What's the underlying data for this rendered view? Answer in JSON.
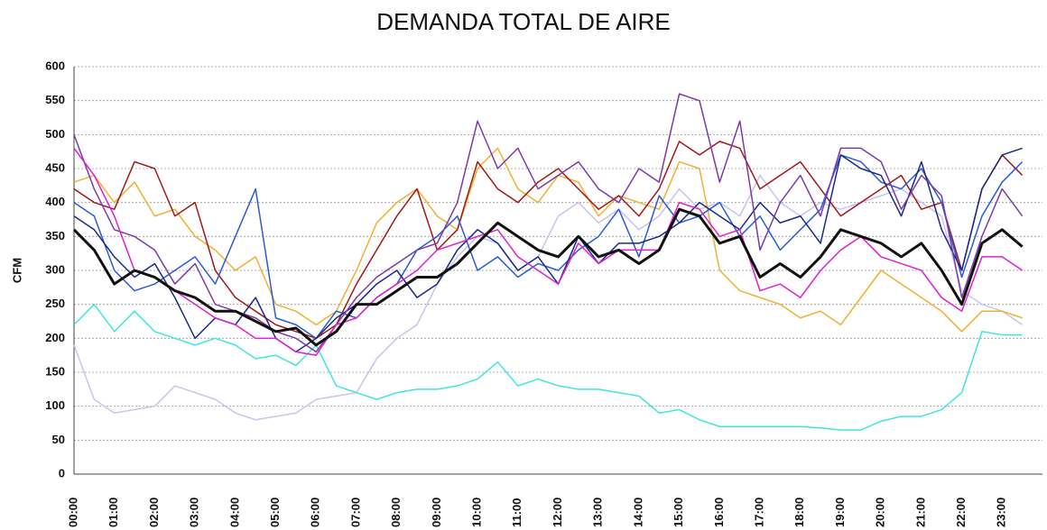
{
  "chart_data": {
    "type": "line",
    "title": "DEMANDA TOTAL DE AIRE",
    "y_label": "CFM",
    "categories": [
      "00:00",
      null,
      "01:00",
      null,
      "02:00",
      null,
      "03:00",
      null,
      "04:00",
      null,
      "05:00",
      null,
      "06:00",
      null,
      "07:00",
      null,
      "08:00",
      null,
      "09:00",
      null,
      "10:00",
      null,
      "11:00",
      null,
      "12:00",
      null,
      "13:00",
      null,
      "14:00",
      null,
      "15:00",
      null,
      "16:00",
      null,
      "17:00",
      null,
      "18:00",
      null,
      "19:00",
      null,
      "20:00",
      null,
      "21:00",
      null,
      "22:00",
      null,
      "23:00",
      null
    ],
    "ylim": [
      0,
      600
    ],
    "yticks": [
      0,
      50,
      100,
      150,
      200,
      250,
      300,
      350,
      400,
      450,
      500,
      550,
      600
    ],
    "grid": true,
    "series": [
      {
        "color": "#c8c4ef",
        "values": [
          190,
          110,
          90,
          95,
          100,
          130,
          120,
          110,
          90,
          80,
          85,
          90,
          110,
          115,
          120,
          170,
          200,
          220,
          280,
          320,
          350,
          340,
          300,
          320,
          380,
          400,
          370,
          390,
          360,
          380,
          420,
          390,
          400,
          380,
          440,
          400,
          380,
          400,
          390,
          400,
          410,
          420,
          400,
          380,
          270,
          250,
          240,
          220
        ]
      },
      {
        "color": "#3ee6e0",
        "values": [
          220,
          250,
          210,
          240,
          210,
          200,
          190,
          200,
          190,
          170,
          175,
          160,
          190,
          130,
          120,
          110,
          120,
          125,
          125,
          130,
          140,
          165,
          130,
          140,
          130,
          125,
          125,
          120,
          115,
          90,
          95,
          80,
          70,
          70,
          70,
          70,
          70,
          68,
          65,
          65,
          78,
          85,
          85,
          95,
          120,
          210,
          205,
          205
        ]
      },
      {
        "color": "#f0b030",
        "values": [
          430,
          440,
          400,
          430,
          380,
          390,
          350,
          330,
          300,
          320,
          250,
          240,
          220,
          240,
          300,
          370,
          400,
          420,
          380,
          360,
          450,
          480,
          420,
          400,
          440,
          430,
          380,
          410,
          400,
          390,
          460,
          450,
          300,
          270,
          260,
          250,
          230,
          240,
          220,
          260,
          300,
          280,
          260,
          240,
          210,
          240,
          240,
          230
        ]
      },
      {
        "color": "#a01818",
        "values": [
          420,
          400,
          390,
          460,
          450,
          380,
          400,
          300,
          260,
          240,
          220,
          210,
          200,
          220,
          280,
          330,
          380,
          420,
          330,
          360,
          460,
          420,
          400,
          430,
          450,
          420,
          390,
          410,
          380,
          420,
          490,
          470,
          490,
          480,
          420,
          440,
          460,
          420,
          380,
          400,
          420,
          440,
          390,
          400,
          300,
          420,
          470,
          440
        ]
      },
      {
        "color": "#2a5ad8",
        "values": [
          400,
          380,
          300,
          270,
          280,
          300,
          320,
          280,
          350,
          420,
          230,
          220,
          200,
          240,
          230,
          260,
          280,
          330,
          350,
          380,
          300,
          320,
          290,
          310,
          300,
          330,
          350,
          390,
          320,
          410,
          370,
          380,
          400,
          350,
          380,
          330,
          360,
          390,
          470,
          460,
          430,
          420,
          450,
          400,
          290,
          380,
          430,
          460
        ]
      },
      {
        "color": "#1a2a8a",
        "values": [
          380,
          360,
          320,
          290,
          310,
          260,
          200,
          230,
          220,
          260,
          200,
          180,
          200,
          230,
          250,
          280,
          300,
          260,
          280,
          330,
          360,
          340,
          300,
          320,
          280,
          350,
          310,
          340,
          340,
          350,
          370,
          400,
          380,
          360,
          400,
          370,
          380,
          340,
          470,
          450,
          440,
          380,
          460,
          360,
          300,
          420,
          470,
          480
        ]
      },
      {
        "color": "#7a3aa8",
        "values": [
          500,
          420,
          360,
          350,
          330,
          280,
          310,
          250,
          240,
          230,
          210,
          200,
          180,
          220,
          260,
          290,
          310,
          330,
          340,
          400,
          520,
          450,
          480,
          420,
          440,
          460,
          420,
          400,
          450,
          430,
          560,
          550,
          430,
          520,
          330,
          400,
          440,
          380,
          480,
          480,
          460,
          390,
          440,
          410,
          260,
          350,
          420,
          380
        ]
      },
      {
        "color": "#e020d0",
        "values": [
          480,
          440,
          380,
          300,
          290,
          270,
          250,
          230,
          220,
          200,
          200,
          180,
          175,
          220,
          230,
          260,
          280,
          300,
          330,
          340,
          350,
          360,
          320,
          300,
          280,
          340,
          310,
          330,
          330,
          330,
          400,
          390,
          350,
          360,
          270,
          280,
          260,
          300,
          330,
          350,
          320,
          310,
          300,
          260,
          240,
          320,
          320,
          300
        ]
      },
      {
        "color": "#111111",
        "values": [
          360,
          330,
          280,
          300,
          290,
          270,
          260,
          240,
          240,
          225,
          210,
          215,
          190,
          210,
          250,
          250,
          270,
          290,
          290,
          310,
          340,
          370,
          350,
          330,
          320,
          350,
          320,
          330,
          310,
          330,
          390,
          380,
          340,
          350,
          290,
          310,
          290,
          320,
          360,
          350,
          340,
          320,
          340,
          300,
          250,
          340,
          360,
          335
        ]
      }
    ]
  }
}
